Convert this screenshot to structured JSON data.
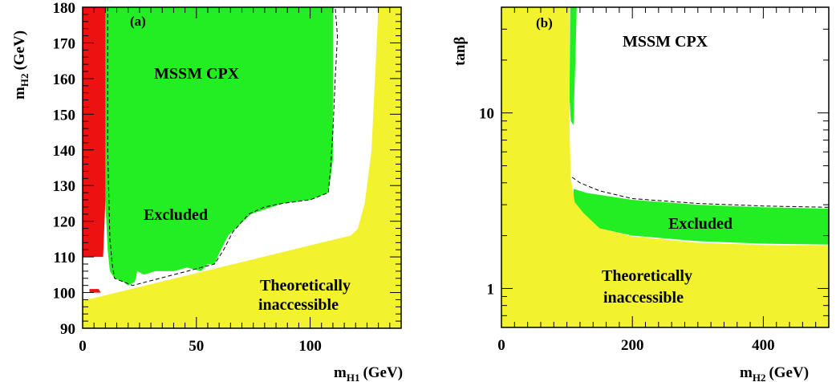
{
  "colors": {
    "allowed": "#ffffff",
    "excluded": "#22ee22",
    "inaccessible": "#f2f22e",
    "red_region": "#ee1111",
    "frame": "#000000"
  },
  "chart_data": [
    {
      "type": "area",
      "panel_label": "(a)",
      "xlabel": {
        "main": "m",
        "sub": "H1",
        "unit": "(GeV)"
      },
      "ylabel": {
        "main": "m",
        "sub": "H2",
        "unit": "(GeV)"
      },
      "xlim": [
        0,
        140
      ],
      "ylim": [
        90,
        180
      ],
      "x_ticks": [
        0,
        50,
        100
      ],
      "y_ticks": [
        90,
        100,
        110,
        120,
        130,
        140,
        150,
        160,
        170,
        180
      ],
      "grid": false,
      "annotations": [
        "MSSM CPX",
        "Excluded",
        "Theoretically",
        "inaccessible"
      ],
      "series": [
        {
          "role": "excluded",
          "polygon": [
            [
              10,
              180
            ],
            [
              110,
              180
            ],
            [
              110,
              137
            ],
            [
              108,
              128
            ],
            [
              100,
              126
            ],
            [
              88,
              125
            ],
            [
              74,
              122
            ],
            [
              64,
              116
            ],
            [
              60,
              111
            ],
            [
              58,
              108
            ],
            [
              55,
              108
            ],
            [
              52,
              106
            ],
            [
              46,
              107
            ],
            [
              40,
              106
            ],
            [
              32,
              106
            ],
            [
              27,
              105
            ],
            [
              24,
              106
            ],
            [
              23,
              103
            ],
            [
              20,
              102
            ],
            [
              18,
              103
            ],
            [
              14,
              104
            ],
            [
              12,
              106
            ],
            [
              11,
              112
            ],
            [
              10,
              125
            ]
          ]
        },
        {
          "role": "red",
          "polygon": [
            [
              0,
              180
            ],
            [
              10,
              180
            ],
            [
              10,
              126
            ],
            [
              9,
              110
            ],
            [
              0,
              110
            ]
          ]
        },
        {
          "role": "red",
          "polygon": [
            [
              3,
              101
            ],
            [
              7,
              101
            ],
            [
              8,
              100
            ],
            [
              3,
              100
            ]
          ]
        },
        {
          "role": "inaccessible",
          "polygon": [
            [
              0,
              90
            ],
            [
              140,
              90
            ],
            [
              140,
              180
            ],
            [
              130,
              180
            ],
            [
              127,
              140
            ],
            [
              124,
              125
            ],
            [
              121,
              118
            ],
            [
              118,
              116
            ],
            [
              0,
              97.7
            ]
          ]
        },
        {
          "role": "boundary-dashed",
          "polyline": [
            [
              11,
              180
            ],
            [
              11,
              140
            ],
            [
              12,
              115
            ],
            [
              13,
              108
            ],
            [
              14,
              104
            ],
            [
              18,
              103
            ],
            [
              22,
              102
            ],
            [
              28,
              103
            ],
            [
              34,
              104
            ],
            [
              40,
              105
            ],
            [
              46,
              106
            ],
            [
              52,
              107
            ],
            [
              58,
              108
            ],
            [
              62,
              112
            ],
            [
              66,
              117
            ],
            [
              73,
              122
            ],
            [
              80,
              124
            ],
            [
              88,
              125
            ],
            [
              100,
              126
            ],
            [
              108,
              128
            ],
            [
              109,
              135
            ],
            [
              110,
              145
            ],
            [
              111,
              160
            ],
            [
              112,
              172
            ],
            [
              111,
              180
            ]
          ]
        }
      ]
    },
    {
      "type": "area",
      "panel_label": "(b)",
      "xlabel": {
        "main": "m",
        "sub": "H2",
        "unit": "(GeV)"
      },
      "ylabel": {
        "main": "tanβ",
        "sub": "",
        "unit": ""
      },
      "xlim": [
        0,
        500
      ],
      "ylim": [
        0.6,
        40
      ],
      "yscale": "log",
      "x_ticks": [
        0,
        200,
        400
      ],
      "y_ticks": [
        1,
        10
      ],
      "grid": false,
      "annotations": [
        "MSSM CPX",
        "Excluded",
        "Theoretically",
        "inaccessible"
      ],
      "series": [
        {
          "role": "excluded",
          "polygon": [
            [
              105,
              40
            ],
            [
              115,
              40
            ],
            [
              113,
              20
            ],
            [
              111,
              12
            ],
            [
              110,
              8.5
            ],
            [
              106,
              9
            ],
            [
              104,
              12
            ]
          ]
        },
        {
          "role": "excluded",
          "polygon": [
            [
              110,
              3.7
            ],
            [
              130,
              3.5
            ],
            [
              200,
              3.2
            ],
            [
              300,
              3.0
            ],
            [
              400,
              2.9
            ],
            [
              500,
              2.85
            ],
            [
              500,
              1.78
            ],
            [
              400,
              1.8
            ],
            [
              300,
              1.86
            ],
            [
              200,
              2.0
            ],
            [
              150,
              2.2
            ],
            [
              120,
              2.7
            ],
            [
              110,
              3.0
            ]
          ]
        },
        {
          "role": "inaccessible",
          "polygon": [
            [
              0,
              0.6
            ],
            [
              500,
              0.6
            ],
            [
              500,
              1.75
            ],
            [
              400,
              1.77
            ],
            [
              300,
              1.82
            ],
            [
              200,
              1.98
            ],
            [
              150,
              2.2
            ],
            [
              125,
              2.7
            ],
            [
              112,
              3.1
            ],
            [
              106,
              4.2
            ],
            [
              104,
              8
            ],
            [
              104,
              40
            ],
            [
              0,
              40
            ]
          ]
        },
        {
          "role": "boundary-dashed",
          "polyline": [
            [
              108,
              4.3
            ],
            [
              120,
              4.0
            ],
            [
              150,
              3.6
            ],
            [
              200,
              3.25
            ],
            [
              300,
              3.05
            ],
            [
              400,
              2.95
            ],
            [
              500,
              2.9
            ]
          ]
        }
      ]
    }
  ]
}
